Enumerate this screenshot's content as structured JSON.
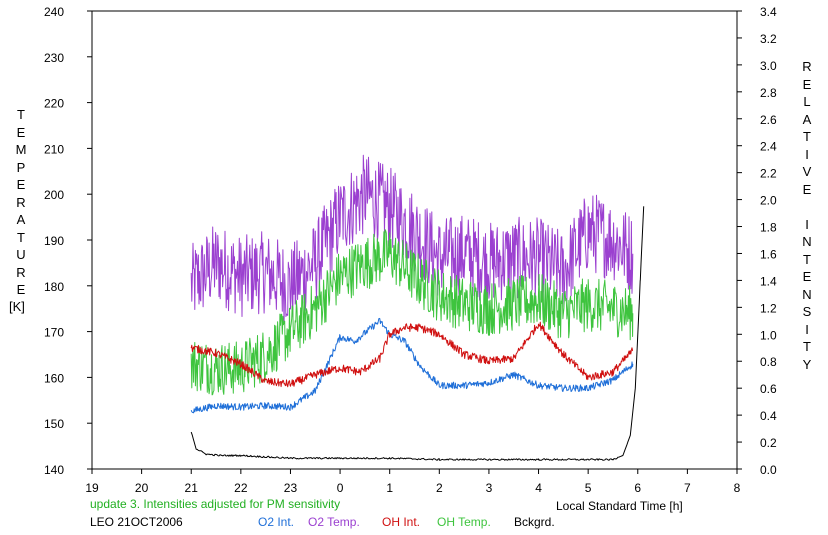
{
  "chart_data": {
    "type": "line",
    "left_axis": {
      "label": "TEMPERATURE",
      "unit": "[K]",
      "range": [
        140,
        240
      ],
      "ticks": [
        "140",
        "150",
        "160",
        "170",
        "180",
        "190",
        "200",
        "210",
        "220",
        "230",
        "240"
      ]
    },
    "right_axis": {
      "label": "RELATIVE INTENSITY",
      "range": [
        0.0,
        3.4
      ],
      "ticks": [
        "0.0",
        "0.2",
        "0.4",
        "0.6",
        "0.8",
        "1.0",
        "1.2",
        "1.4",
        "1.6",
        "1.8",
        "2.0",
        "2.2",
        "2.4",
        "2.6",
        "2.8",
        "3.0",
        "3.2",
        "3.4"
      ]
    },
    "x_axis": {
      "label": "Local Standard Time [h]",
      "range": [
        19,
        32
      ],
      "ticks": [
        "19",
        "20",
        "21",
        "22",
        "23",
        "0",
        "1",
        "2",
        "3",
        "4",
        "5",
        "6",
        "7",
        "8"
      ]
    },
    "annotation": "update 3. Intensities adjusted for PM sensitivity",
    "station_label": "LEO 21OCT2006",
    "series": [
      {
        "name": "O2 Int.",
        "axis": "right",
        "color": "#1f6fd8",
        "x": [
          21.0,
          21.5,
          22.0,
          22.5,
          23.0,
          23.5,
          24.0,
          24.3,
          24.6,
          24.8,
          25.0,
          25.3,
          25.6,
          26.0,
          26.5,
          27.0,
          27.5,
          28.0,
          28.5,
          29.0,
          29.5,
          29.9
        ],
        "y": [
          0.43,
          0.47,
          0.46,
          0.47,
          0.46,
          0.58,
          0.98,
          0.95,
          1.04,
          1.1,
          1.0,
          0.95,
          0.77,
          0.62,
          0.62,
          0.64,
          0.7,
          0.62,
          0.6,
          0.6,
          0.66,
          0.78
        ]
      },
      {
        "name": "O2 Temp.",
        "axis": "left",
        "color": "#9b40d0",
        "x": [
          21.0,
          21.5,
          22.0,
          22.5,
          23.0,
          23.5,
          24.0,
          24.5,
          25.0,
          25.5,
          26.0,
          26.5,
          27.0,
          27.5,
          28.0,
          28.5,
          29.0,
          29.5,
          29.9
        ],
        "y": [
          180,
          185,
          182,
          183,
          180,
          185,
          195,
          200,
          197,
          192,
          186,
          187,
          185,
          186,
          186,
          183,
          192,
          190,
          187
        ]
      },
      {
        "name": "OH Int.",
        "axis": "right",
        "color": "#d01010",
        "x": [
          21.0,
          21.5,
          22.0,
          22.5,
          23.0,
          23.5,
          24.0,
          24.4,
          24.8,
          25.0,
          25.3,
          25.6,
          26.0,
          26.5,
          27.0,
          27.5,
          28.0,
          28.5,
          29.0,
          29.5,
          29.9
        ],
        "y": [
          0.9,
          0.86,
          0.78,
          0.65,
          0.63,
          0.7,
          0.75,
          0.72,
          0.82,
          1.0,
          1.05,
          1.05,
          1.0,
          0.85,
          0.8,
          0.82,
          1.08,
          0.85,
          0.68,
          0.72,
          0.88
        ]
      },
      {
        "name": "OH Temp.",
        "axis": "left",
        "color": "#3ec43e",
        "x": [
          21.0,
          21.5,
          22.0,
          22.5,
          23.0,
          23.5,
          24.0,
          24.5,
          25.0,
          25.5,
          26.0,
          26.5,
          27.0,
          27.5,
          28.0,
          28.5,
          29.0,
          29.5,
          29.9
        ],
        "y": [
          163,
          162,
          162,
          165,
          170,
          175,
          182,
          185,
          187,
          182,
          178,
          176,
          175,
          176,
          177,
          174,
          176,
          175,
          174
        ]
      },
      {
        "name": "Bckgrd.",
        "axis": "right",
        "color": "#000000",
        "x": [
          21.0,
          21.1,
          21.3,
          21.6,
          22.0,
          23.0,
          24.0,
          25.0,
          26.0,
          27.0,
          28.0,
          29.0,
          29.5,
          29.7,
          29.85,
          29.95,
          30.05,
          30.12
        ],
        "y": [
          0.28,
          0.15,
          0.11,
          0.1,
          0.1,
          0.08,
          0.08,
          0.08,
          0.07,
          0.07,
          0.07,
          0.07,
          0.07,
          0.1,
          0.25,
          0.6,
          1.4,
          1.95
        ]
      }
    ]
  }
}
